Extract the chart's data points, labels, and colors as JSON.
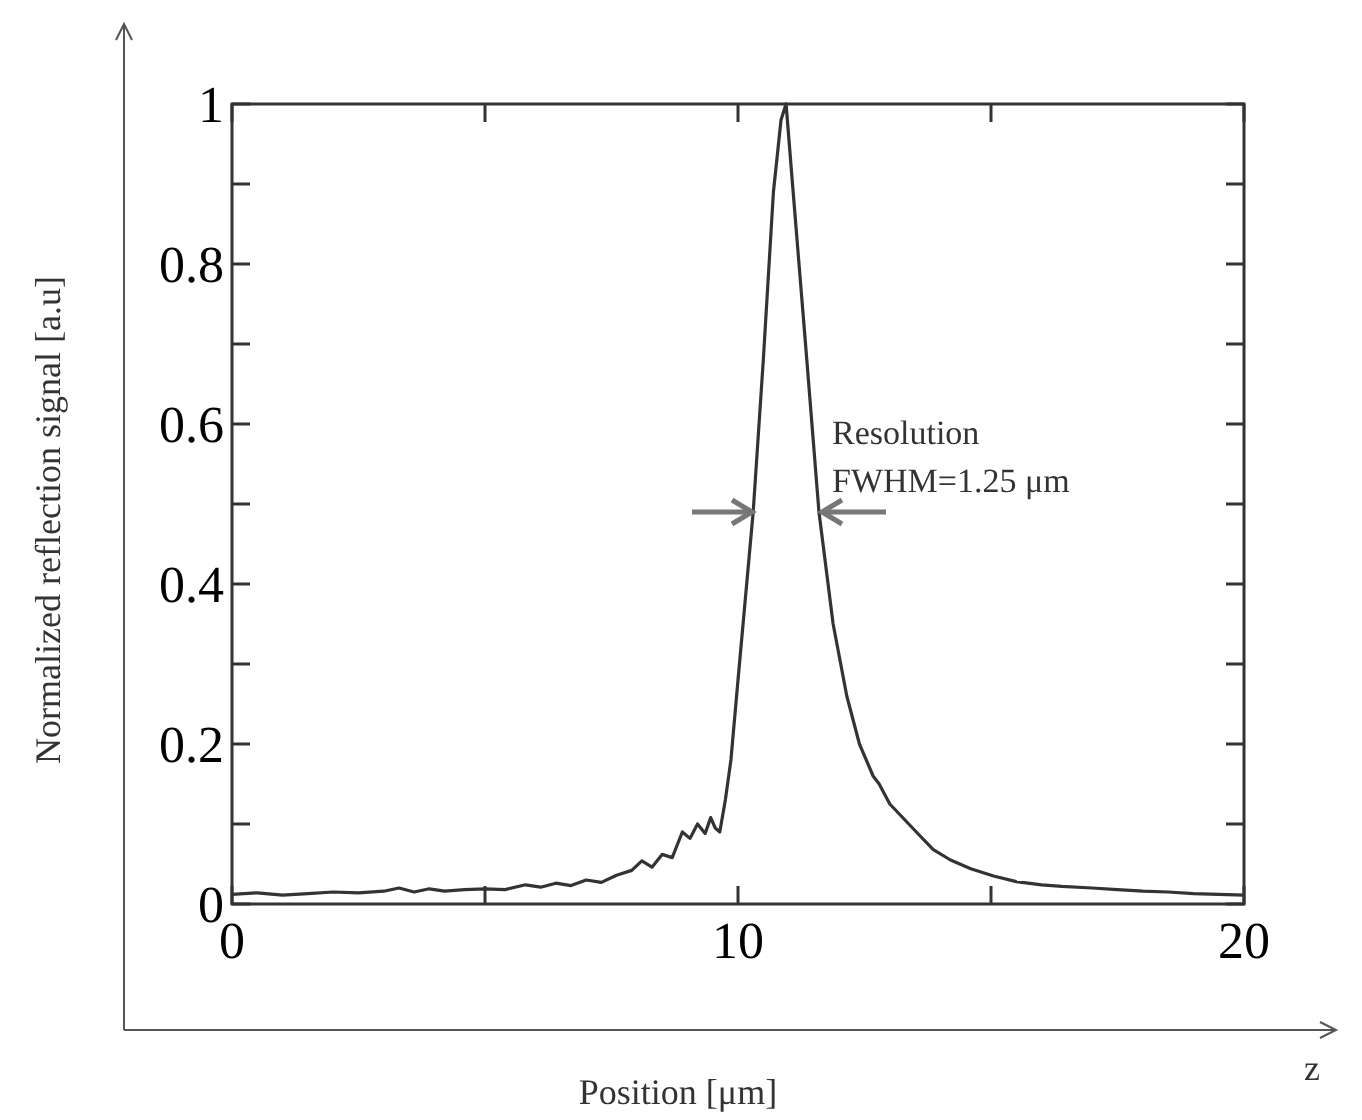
{
  "chart_data": {
    "type": "line",
    "xlabel": "Position [μm]",
    "ylabel": "Normalized reflection signal [a.u]",
    "annotations": [
      "Resolution",
      "FWHM=1.25 μm",
      "z"
    ],
    "xlim": [
      0,
      20
    ],
    "ylim": [
      0,
      1
    ],
    "xticks": [
      0,
      {
        "value": 5,
        "label": null
      },
      10,
      {
        "value": 15,
        "label": null
      },
      20
    ],
    "yticks": [
      0,
      {
        "value": 0.1,
        "label": null
      },
      0.2,
      {
        "value": 0.3,
        "label": null
      },
      0.4,
      {
        "value": 0.5,
        "label": null
      },
      0.6,
      {
        "value": 0.7,
        "label": null
      },
      0.8,
      {
        "value": 0.9,
        "label": null
      },
      1
    ],
    "grid": false,
    "marker": "none",
    "line_style": "solid",
    "series": [
      {
        "color": "#333333",
        "x": [
          0,
          0.5,
          1,
          1.5,
          2,
          2.5,
          3,
          3.3,
          3.6,
          3.9,
          4.2,
          4.6,
          5,
          5.4,
          5.8,
          6.1,
          6.4,
          6.7,
          7,
          7.3,
          7.6,
          7.9,
          8.1,
          8.3,
          8.5,
          8.7,
          8.9,
          9.05,
          9.2,
          9.35,
          9.46,
          9.55,
          9.64,
          9.75,
          9.86,
          10,
          10.1,
          10.3,
          10.5,
          10.7,
          10.85,
          10.95,
          11.09,
          11.36,
          11.6,
          11.88,
          12.15,
          12.4,
          12.67,
          12.79,
          13,
          13.3,
          13.6,
          13.86,
          14.2,
          14.6,
          15.05,
          15.5,
          16,
          16.4,
          17,
          17.5,
          18,
          18.5,
          19,
          19.5,
          20
        ],
        "values": [
          0.012,
          0.014,
          0.011,
          0.013,
          0.015,
          0.014,
          0.016,
          0.02,
          0.015,
          0.019,
          0.016,
          0.018,
          0.019,
          0.018,
          0.024,
          0.021,
          0.026,
          0.023,
          0.03,
          0.027,
          0.036,
          0.042,
          0.054,
          0.046,
          0.062,
          0.058,
          0.09,
          0.082,
          0.1,
          0.088,
          0.108,
          0.095,
          0.09,
          0.13,
          0.18,
          0.28,
          0.35,
          0.49,
          0.68,
          0.89,
          0.98,
          1,
          0.89,
          0.68,
          0.49,
          0.35,
          0.26,
          0.2,
          0.16,
          0.15,
          0.125,
          0.105,
          0.085,
          0.068,
          0.055,
          0.044,
          0.035,
          0.028,
          0.024,
          0.022,
          0.02,
          0.018,
          0.016,
          0.015,
          0.013,
          0.012,
          0.011
        ]
      }
    ]
  }
}
